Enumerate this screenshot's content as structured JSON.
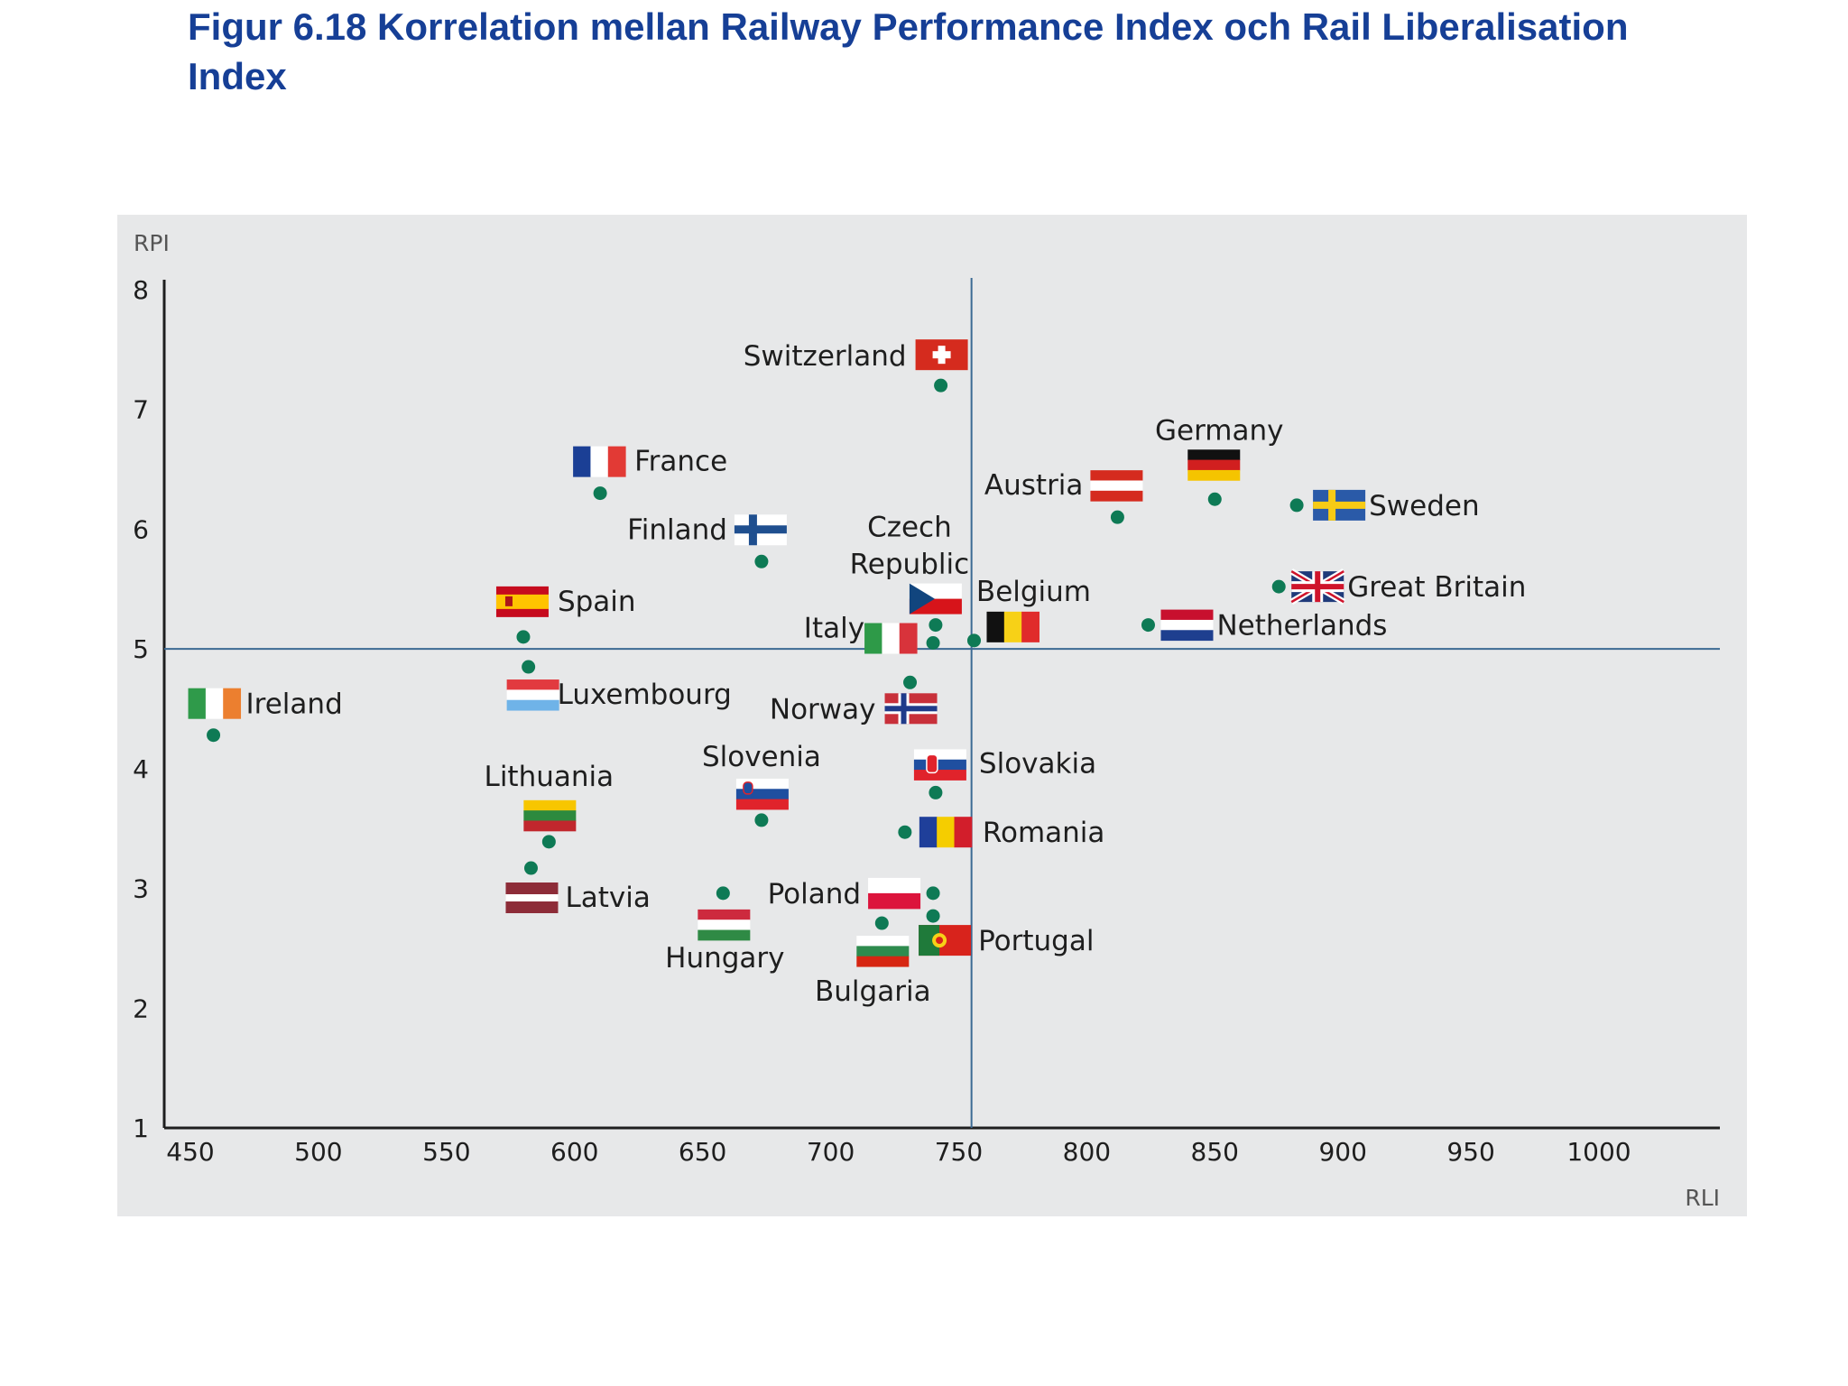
{
  "title": "Figur 6.18 Korrelation mellan Railway Performance Index och Rail Liberalisation Index",
  "colors": {
    "point": "#0e7a55",
    "axis": "#1e1e1e",
    "refline": "#3c6a93",
    "title": "#163f96",
    "panel": "#e7e8e9"
  },
  "chart_data": {
    "type": "scatter",
    "title": "",
    "xlabel": "RLI",
    "ylabel": "RPI",
    "xlim": [
      450,
      1000
    ],
    "ylim": [
      1,
      8
    ],
    "xticks": [
      "450",
      "500",
      "550",
      "600",
      "650",
      "700",
      "750",
      "800",
      "850",
      "900",
      "950",
      "1000"
    ],
    "yticks": [
      "1",
      "2",
      "3",
      "4",
      "5",
      "6",
      "7",
      "8"
    ],
    "reference_lines": {
      "x": 755,
      "y": 5
    },
    "grid": false,
    "points": [
      {
        "name": "Switzerland",
        "x": 743,
        "y": 7.2,
        "flag": "ch"
      },
      {
        "name": "France",
        "x": 610,
        "y": 6.3,
        "flag": "fr"
      },
      {
        "name": "Germany",
        "x": 850,
        "y": 6.25,
        "flag": "de"
      },
      {
        "name": "Sweden",
        "x": 882,
        "y": 6.2,
        "flag": "se"
      },
      {
        "name": "Austria",
        "x": 812,
        "y": 6.1,
        "flag": "at"
      },
      {
        "name": "Finland",
        "x": 673,
        "y": 5.73,
        "flag": "fi"
      },
      {
        "name": "Great Britain",
        "x": 875,
        "y": 5.52,
        "flag": "gb"
      },
      {
        "name": "Czech Republic",
        "x": 741,
        "y": 5.2,
        "flag": "cz"
      },
      {
        "name": "Netherlands",
        "x": 824,
        "y": 5.2,
        "flag": "nl"
      },
      {
        "name": "Spain",
        "x": 580,
        "y": 5.1,
        "flag": "es"
      },
      {
        "name": "Belgium",
        "x": 756,
        "y": 5.07,
        "flag": "be"
      },
      {
        "name": "Italy",
        "x": 740,
        "y": 5.05,
        "flag": "it"
      },
      {
        "name": "Luxembourg",
        "x": 582,
        "y": 4.85,
        "flag": "lu"
      },
      {
        "name": "Norway",
        "x": 731,
        "y": 4.72,
        "flag": "no"
      },
      {
        "name": "Ireland",
        "x": 459,
        "y": 4.28,
        "flag": "ie"
      },
      {
        "name": "Slovakia",
        "x": 741,
        "y": 3.8,
        "flag": "sk"
      },
      {
        "name": "Slovenia",
        "x": 673,
        "y": 3.57,
        "flag": "si"
      },
      {
        "name": "Romania",
        "x": 729,
        "y": 3.47,
        "flag": "ro"
      },
      {
        "name": "Lithuania",
        "x": 590,
        "y": 3.39,
        "flag": "lt"
      },
      {
        "name": "Latvia",
        "x": 583,
        "y": 3.17,
        "flag": "lv"
      },
      {
        "name": "Hungary",
        "x": 658,
        "y": 2.96,
        "flag": "hu"
      },
      {
        "name": "Poland",
        "x": 740,
        "y": 2.96,
        "flag": "pl"
      },
      {
        "name": "Portugal",
        "x": 740,
        "y": 2.77,
        "flag": "pt"
      },
      {
        "name": "Bulgaria",
        "x": 720,
        "y": 2.71,
        "flag": "bg"
      }
    ]
  }
}
